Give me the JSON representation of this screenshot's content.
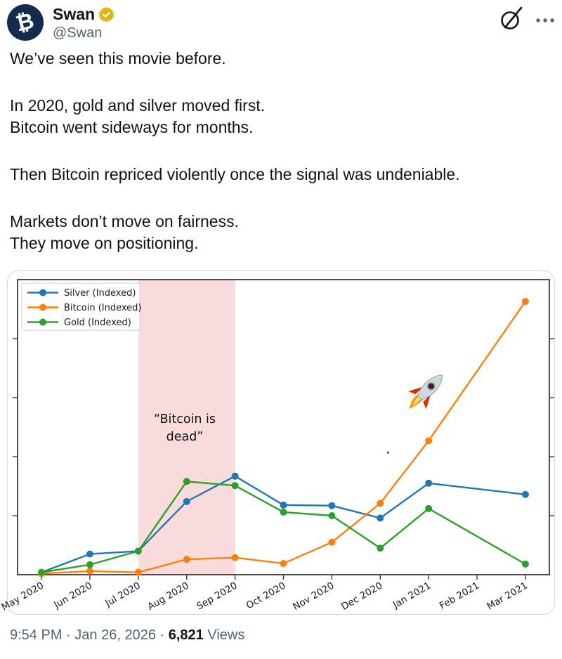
{
  "post": {
    "author": {
      "name": "Swan",
      "handle": "@Swan",
      "avatar_symbol": "₿",
      "verified_badge": "gold-check"
    },
    "body_paragraphs": [
      [
        "We’ve seen this movie before."
      ],
      [
        "In 2020, gold and silver moved first.",
        "Bitcoin went sideways for months."
      ],
      [
        "Then Bitcoin repriced violently once the signal was undeniable."
      ],
      [
        "Markets don’t move on fairness.",
        "They move on positioning."
      ]
    ],
    "footer": {
      "time": "9:54 PM",
      "date": "Jan 26, 2026",
      "separator": "·",
      "views_count": "6,821",
      "views_label": "Views"
    }
  },
  "theme": {
    "text_primary": "#0f1419",
    "text_secondary": "#536471",
    "avatar_bg": "#152a4f",
    "badge_gold": "#e2b50d",
    "card_border": "#cfd9de"
  },
  "chart_data": {
    "type": "line",
    "title": "",
    "xlabel": "",
    "ylabel": "",
    "x_tick_labels": [
      "May 2020",
      "Jun 2020",
      "Jul 2020",
      "Aug 2020",
      "Sep 2020",
      "Oct 2020",
      "Nov 2020",
      "Dec 2020",
      "Jan 2021",
      "Feb 2021",
      "Mar 2021"
    ],
    "x_tick_label_rotation_deg": 30,
    "first_tick_partially_clipped": true,
    "y_axis": {
      "range": [
        0,
        500
      ],
      "tick_values": [
        100,
        200,
        300,
        400
      ],
      "labels_visible": false
    },
    "grid": false,
    "series": [
      {
        "name": "Silver (Indexed)",
        "color": "#1f77b4",
        "x_tick_index": [
          0,
          1,
          2,
          3,
          4,
          5,
          6,
          7,
          8,
          10
        ],
        "values": [
          4,
          35,
          40,
          124,
          167,
          118,
          117,
          96,
          155,
          136
        ]
      },
      {
        "name": "Bitcoin (Indexed)",
        "color": "#ff7f0e",
        "x_tick_index": [
          0,
          1,
          2,
          3,
          4,
          5,
          6,
          7,
          8,
          10
        ],
        "values": [
          2,
          6,
          4,
          26,
          29,
          19,
          55,
          121,
          227,
          463
        ]
      },
      {
        "name": "Gold (Indexed)",
        "color": "#2ca02c",
        "x_tick_index": [
          0,
          1,
          2,
          3,
          4,
          5,
          6,
          7,
          8,
          10
        ],
        "values": [
          4,
          17,
          40,
          158,
          151,
          106,
          100,
          45,
          112,
          18
        ]
      }
    ],
    "legend": {
      "position": "upper-left"
    },
    "shaded_region": {
      "from_tick_index": 2,
      "to_tick_index": 4,
      "color": "#fadcdd"
    },
    "annotation": {
      "lines": [
        "“Bitcoin is",
        "dead”"
      ],
      "x_tick_index": 4.4,
      "value": 262
    },
    "rocket_emoji": {
      "glyph": "🚀",
      "x_tick_index": 8.0,
      "value": 315
    },
    "dust_speck": {
      "x_tick_index": 7.16,
      "value": 207
    }
  }
}
